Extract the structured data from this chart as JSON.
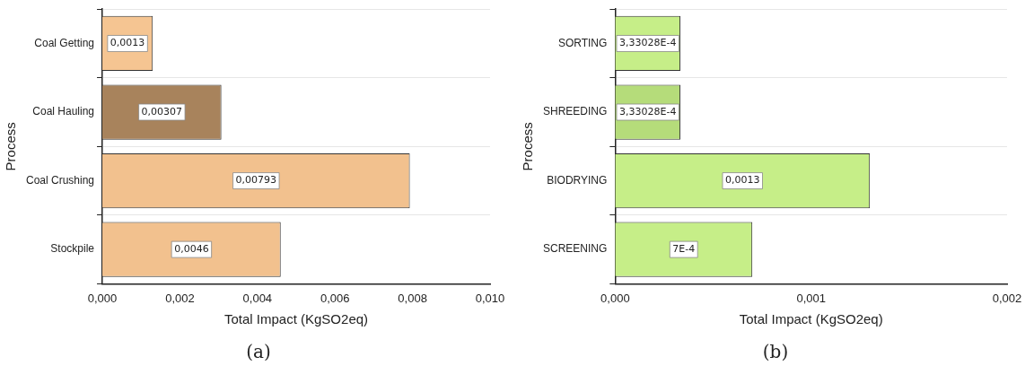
{
  "chart_data": [
    {
      "type": "bar",
      "orientation": "horizontal",
      "title": "(a)",
      "xlabel": "Total Impact (KgSO2eq)",
      "ylabel": "Process",
      "categories": [
        "Coal Getting",
        "Coal Hauling",
        "Coal Crushing",
        "Stockpile"
      ],
      "values": [
        0.0013,
        0.00307,
        0.00793,
        0.0046
      ],
      "value_labels": [
        "0,0013",
        "0,00307",
        "0,00793",
        "0,0046"
      ],
      "colors": [
        "#f5c592",
        "#a8835c",
        "#f2c18e",
        "#f2c18e"
      ],
      "xlim": [
        0,
        0.01
      ],
      "xticks": [
        {
          "value": 0,
          "label": "0,000"
        },
        {
          "value": 0.002,
          "label": "0,002"
        },
        {
          "value": 0.004,
          "label": "0,004"
        },
        {
          "value": 0.006,
          "label": "0,006"
        },
        {
          "value": 0.008,
          "label": "0,008"
        },
        {
          "value": 0.01,
          "label": "0,010"
        }
      ],
      "grid": "y",
      "legend": false
    },
    {
      "type": "bar",
      "orientation": "horizontal",
      "title": "(b)",
      "xlabel": "Total Impact (KgSO2eq)",
      "ylabel": "Process",
      "categories": [
        "SORTING",
        "SHREEDING",
        "BIODRYING",
        "SCREENING"
      ],
      "values": [
        0.000333028,
        0.000333028,
        0.0013,
        0.0007
      ],
      "value_labels": [
        "3,33028E-4",
        "3,33028E-4",
        "0,0013",
        "7E-4"
      ],
      "colors": [
        "#c6ee88",
        "#b5dc7a",
        "#c6ee88",
        "#c6ee88"
      ],
      "xlim": [
        0,
        0.002
      ],
      "xticks": [
        {
          "value": 0,
          "label": "0,000"
        },
        {
          "value": 0.001,
          "label": "0,001"
        },
        {
          "value": 0.002,
          "label": "0,002"
        }
      ],
      "grid": "y",
      "legend": false
    }
  ]
}
